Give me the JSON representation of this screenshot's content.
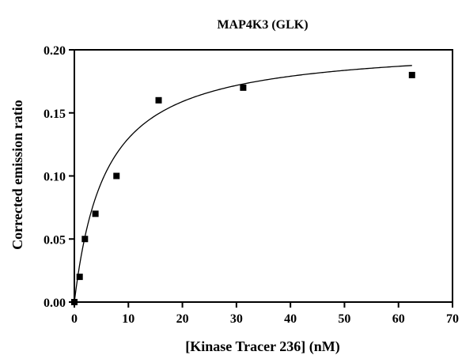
{
  "chart_data": {
    "type": "scatter",
    "title": "MAP4K3 (GLK)",
    "xlabel": "[Kinase Tracer 236] (nM)",
    "ylabel": "Corrected emission ratio",
    "xlim": [
      0,
      70
    ],
    "ylim": [
      0,
      0.2
    ],
    "x_ticks": [
      "0",
      "10",
      "20",
      "30",
      "40",
      "50",
      "60",
      "70"
    ],
    "y_ticks": [
      "0.00",
      "0.05",
      "0.10",
      "0.15",
      "0.20"
    ],
    "points": {
      "x": [
        0,
        0.98,
        1.95,
        3.9,
        7.8,
        15.6,
        31.25,
        62.5
      ],
      "y": [
        0,
        0.02,
        0.05,
        0.07,
        0.1,
        0.16,
        0.17,
        0.18
      ]
    },
    "fit": {
      "model": "one-site binding",
      "bmax": 0.205,
      "kd": 5.8
    },
    "grid": false,
    "legend": "none"
  }
}
